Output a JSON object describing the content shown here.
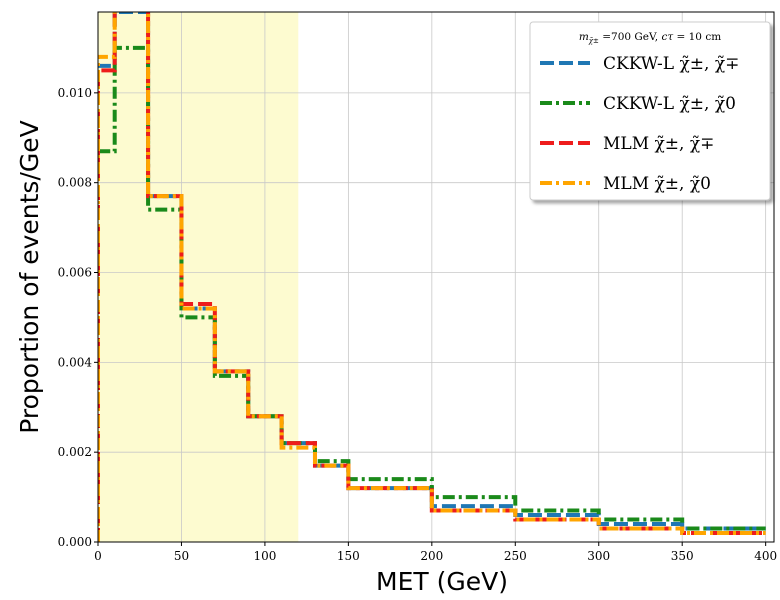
{
  "chart_data": {
    "type": "line",
    "step": true,
    "xlabel": "MET (GeV)",
    "ylabel": "Proportion of events/GeV",
    "xlim": [
      0,
      405
    ],
    "ylim": [
      0,
      0.0118
    ],
    "x_ticks": [
      0,
      50,
      100,
      150,
      200,
      250,
      300,
      350,
      400
    ],
    "y_ticks": [
      0.0,
      0.002,
      0.004,
      0.006,
      0.008,
      0.01
    ],
    "y_tick_labels": [
      "0.000",
      "0.002",
      "0.004",
      "0.006",
      "0.008",
      "0.010"
    ],
    "grid": true,
    "highlight_band": {
      "x_from": 0,
      "x_to": 120,
      "color": "#fdfbd0"
    },
    "bin_edges": [
      0,
      10,
      30,
      50,
      70,
      90,
      110,
      130,
      150,
      200,
      250,
      300,
      350,
      400
    ],
    "legend_header": "m = 700 GeV, cτ = 10 cm",
    "legend_position": "top-right",
    "series": [
      {
        "label": "CKKW-L",
        "label_math": "χ̃±, χ̃∓",
        "color": "#1f77b4",
        "dash": "dashed",
        "values": [
          0.0106,
          0.0118,
          0.0077,
          0.0052,
          0.0038,
          0.0028,
          0.0022,
          0.0017,
          0.0012,
          0.0008,
          0.0006,
          0.0004,
          0.0003
        ]
      },
      {
        "label": "CKKW-L",
        "label_math": "χ̃±, χ̃0",
        "color": "#1a8a1a",
        "dash": "dashdot",
        "values": [
          0.0087,
          0.011,
          0.0074,
          0.005,
          0.0037,
          0.0028,
          0.0022,
          0.0018,
          0.0014,
          0.001,
          0.0007,
          0.0005,
          0.0003
        ]
      },
      {
        "label": "MLM",
        "label_math": "χ̃±, χ̃∓",
        "color": "#ee1c1c",
        "dash": "dashed",
        "values": [
          0.0105,
          0.0119,
          0.0077,
          0.0053,
          0.0038,
          0.0028,
          0.0022,
          0.0017,
          0.0012,
          0.0007,
          0.0005,
          0.0003,
          0.0002
        ]
      },
      {
        "label": "MLM",
        "label_math": "χ̃±, χ̃0",
        "color": "#ffa500",
        "dash": "dashdot",
        "values": [
          0.0108,
          0.0119,
          0.0077,
          0.0052,
          0.0038,
          0.0028,
          0.0021,
          0.0017,
          0.0012,
          0.0007,
          0.0005,
          0.0003,
          0.0002
        ]
      }
    ]
  }
}
